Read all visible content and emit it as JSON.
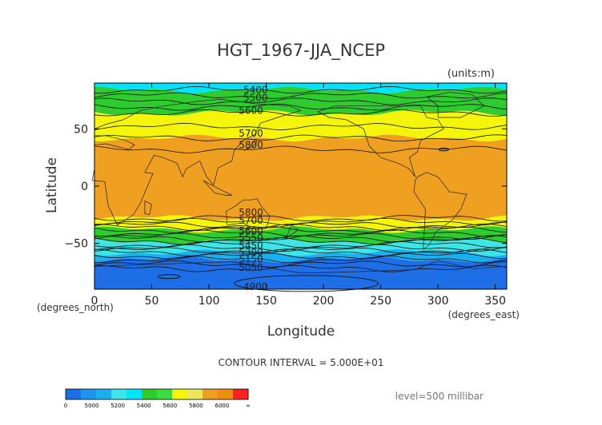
{
  "chart_data": {
    "type": "heatmap",
    "title": "HGT_1967-JJA_NCEP",
    "units_label": "(units:m)",
    "xlabel": "Longitude",
    "ylabel": "Latitude",
    "x_unit_label": "(degrees_east)",
    "y_unit_label": "(degrees_north)",
    "xlim": [
      0,
      360
    ],
    "ylim": [
      -90,
      90
    ],
    "x_ticks": [
      0,
      50,
      100,
      150,
      200,
      250,
      300,
      350
    ],
    "y_ticks": [
      50,
      0,
      -50
    ],
    "contour_interval_text": "CONTOUR INTERVAL = 5.000E+01",
    "level_text": "level=500 millibar",
    "contour_labels": [
      {
        "text": "5400",
        "lon": 130,
        "lat": 84
      },
      {
        "text": "5500",
        "lon": 130,
        "lat": 77
      },
      {
        "text": "5600",
        "lon": 126,
        "lat": 66
      },
      {
        "text": "5700",
        "lon": 126,
        "lat": 46
      },
      {
        "text": "5800",
        "lon": 126,
        "lat": 36
      },
      {
        "text": "5800",
        "lon": 126,
        "lat": -23
      },
      {
        "text": "5700",
        "lon": 126,
        "lat": -30
      },
      {
        "text": "5600",
        "lon": 126,
        "lat": -39
      },
      {
        "text": "5550",
        "lon": 126,
        "lat": -45
      },
      {
        "text": "5450",
        "lon": 126,
        "lat": -52
      },
      {
        "text": "5300",
        "lon": 126,
        "lat": -58
      },
      {
        "text": "5150",
        "lon": 126,
        "lat": -64
      },
      {
        "text": "5050",
        "lon": 126,
        "lat": -71
      },
      {
        "text": "4900",
        "lon": 130,
        "lat": -88
      }
    ],
    "bands": [
      {
        "lat_top": 90,
        "lat_bottom": 84,
        "value": 5400,
        "color": "#00e5ff"
      },
      {
        "lat_top": 84,
        "lat_bottom": 64,
        "value": 5500,
        "color": "#2ecc2e"
      },
      {
        "lat_top": 64,
        "lat_bottom": 42,
        "value": 5700,
        "color": "#f5f50a"
      },
      {
        "lat_top": 42,
        "lat_bottom": -28,
        "value": 5850,
        "color": "#f0a020"
      },
      {
        "lat_top": -28,
        "lat_bottom": -38,
        "value": 5700,
        "color": "#f5f50a"
      },
      {
        "lat_top": -38,
        "lat_bottom": -48,
        "value": 5500,
        "color": "#2ecc2e"
      },
      {
        "lat_top": -48,
        "lat_bottom": -58,
        "value": 5350,
        "color": "#3ce6e6"
      },
      {
        "lat_top": -58,
        "lat_bottom": -64,
        "value": 5250,
        "color": "#1ab0f0"
      },
      {
        "lat_top": -64,
        "lat_bottom": -90,
        "value": 5000,
        "color": "#1e6ee8"
      }
    ],
    "colorbar": {
      "colors": [
        "#1e6ee8",
        "#1a96ee",
        "#1ab0f0",
        "#3ce6e6",
        "#00e5ff",
        "#2ecc2e",
        "#3cdc3c",
        "#f5f50a",
        "#e8e85a",
        "#f0a020",
        "#f08c10",
        "#ff2020"
      ],
      "labels": [
        "0",
        "5000",
        "5200",
        "5400",
        "5600",
        "5800",
        "6000",
        "∞"
      ]
    }
  }
}
